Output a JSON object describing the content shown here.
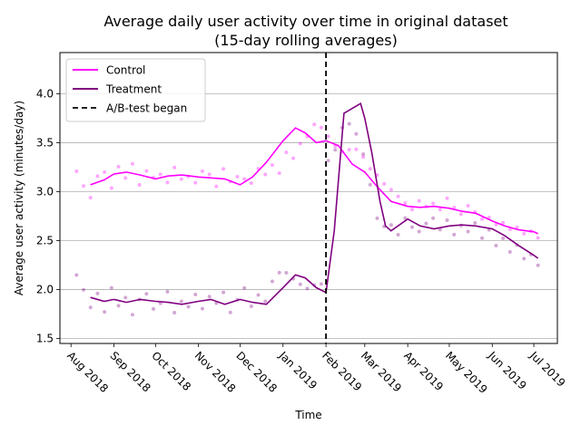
{
  "chart_data": {
    "type": "line",
    "title": "Average daily user activity over time in original dataset",
    "subtitle": "(15-day rolling averages)",
    "xlabel": "Time",
    "ylabel": "Average user activity (minutes/day)",
    "xlim": [
      "2018-07-24",
      "2019-07-18"
    ],
    "ylim": [
      1.45,
      4.42
    ],
    "yticks": [
      1.5,
      2.0,
      2.5,
      3.0,
      3.5,
      4.0
    ],
    "ytick_labels": [
      "1.5",
      "2.0",
      "2.5",
      "3.0",
      "3.5",
      "4.0"
    ],
    "xticks": [
      "2018-08-01",
      "2018-09-01",
      "2018-10-01",
      "2018-11-01",
      "2018-12-01",
      "2019-01-01",
      "2019-02-01",
      "2019-03-01",
      "2019-04-01",
      "2019-05-01",
      "2019-06-01",
      "2019-07-01"
    ],
    "xtick_labels": [
      "Aug 2018",
      "Sep 2018",
      "Oct 2018",
      "Nov 2018",
      "Dec 2018",
      "Jan 2019",
      "Feb 2019",
      "Mar 2019",
      "Apr 2019",
      "May 2019",
      "Jun 2019",
      "Jul 2019"
    ],
    "grid": "horizontal",
    "legend_position": "upper-left",
    "event": {
      "date": "2019-02-01",
      "label": "A/B-test began",
      "color": "#000000"
    },
    "series": [
      {
        "name": "Control",
        "color": "#ff00ff",
        "x": [
          "2018-08-15",
          "2018-08-25",
          "2018-09-01",
          "2018-09-10",
          "2018-09-20",
          "2018-10-01",
          "2018-10-10",
          "2018-10-20",
          "2018-11-01",
          "2018-11-10",
          "2018-11-20",
          "2018-12-01",
          "2018-12-10",
          "2018-12-20",
          "2019-01-01",
          "2019-01-10",
          "2019-01-17",
          "2019-01-25",
          "2019-02-01",
          "2019-02-10",
          "2019-02-20",
          "2019-03-01",
          "2019-03-10",
          "2019-03-20",
          "2019-04-01",
          "2019-04-10",
          "2019-04-20",
          "2019-05-01",
          "2019-05-10",
          "2019-05-20",
          "2019-06-01",
          "2019-06-10",
          "2019-06-20",
          "2019-07-01",
          "2019-07-04"
        ],
        "y": [
          3.07,
          3.12,
          3.18,
          3.2,
          3.17,
          3.13,
          3.16,
          3.17,
          3.15,
          3.14,
          3.13,
          3.07,
          3.15,
          3.3,
          3.52,
          3.65,
          3.6,
          3.5,
          3.52,
          3.47,
          3.28,
          3.2,
          3.05,
          2.9,
          2.85,
          2.84,
          2.85,
          2.83,
          2.8,
          2.78,
          2.7,
          2.65,
          2.61,
          2.59,
          2.57
        ],
        "points": [
          3.3,
          3.05,
          2.85,
          3.2,
          3.25,
          2.95,
          3.3,
          3.1,
          3.35,
          3.0,
          3.25,
          3.15,
          3.2,
          3.05,
          3.3,
          3.1,
          3.15,
          3.05,
          3.25,
          3.2,
          3.0,
          3.3,
          3.1,
          3.2,
          3.15,
          3.05,
          3.25,
          3.1,
          3.2,
          3.0,
          3.3,
          3.15,
          3.4,
          3.55,
          3.8,
          3.75,
          3.6,
          3.45,
          3.4,
          3.5,
          3.55,
          3.45,
          3.3,
          3.25,
          3.15,
          3.1,
          3.0,
          2.9,
          2.8,
          2.95,
          2.85,
          2.9,
          2.8,
          3.0,
          2.85,
          2.75,
          2.9,
          2.8,
          2.7,
          2.75,
          2.65,
          2.7,
          2.6,
          2.65,
          2.55,
          2.6,
          2.5
        ]
      },
      {
        "name": "Treatment",
        "color": "#800080",
        "x": [
          "2018-08-15",
          "2018-08-25",
          "2018-09-01",
          "2018-09-10",
          "2018-09-20",
          "2018-10-01",
          "2018-10-10",
          "2018-10-20",
          "2018-11-01",
          "2018-11-10",
          "2018-11-20",
          "2018-12-01",
          "2018-12-10",
          "2018-12-20",
          "2019-01-01",
          "2019-01-10",
          "2019-01-17",
          "2019-01-25",
          "2019-02-01",
          "2019-02-07",
          "2019-02-14",
          "2019-02-20",
          "2019-02-26",
          "2019-03-01",
          "2019-03-06",
          "2019-03-12",
          "2019-03-16",
          "2019-03-20",
          "2019-04-01",
          "2019-04-10",
          "2019-04-20",
          "2019-05-01",
          "2019-05-10",
          "2019-05-20",
          "2019-06-01",
          "2019-06-10",
          "2019-06-20",
          "2019-07-01",
          "2019-07-04"
        ],
        "y": [
          1.92,
          1.88,
          1.9,
          1.87,
          1.9,
          1.88,
          1.87,
          1.85,
          1.88,
          1.9,
          1.85,
          1.9,
          1.87,
          1.85,
          2.02,
          2.15,
          2.12,
          2.02,
          1.97,
          2.6,
          3.8,
          3.85,
          3.9,
          3.75,
          3.4,
          2.9,
          2.65,
          2.6,
          2.72,
          2.65,
          2.62,
          2.65,
          2.66,
          2.65,
          2.62,
          2.55,
          2.45,
          2.35,
          2.32
        ],
        "points": [
          2.3,
          2.05,
          1.75,
          2.0,
          1.7,
          2.1,
          1.8,
          1.95,
          1.65,
          1.9,
          2.0,
          1.75,
          1.85,
          2.05,
          1.7,
          1.9,
          1.8,
          2.0,
          1.75,
          1.95,
          1.85,
          2.05,
          1.7,
          1.9,
          2.1,
          1.8,
          2.0,
          1.9,
          2.2,
          2.3,
          2.25,
          2.1,
          2.0,
          1.95,
          2.05,
          2.1,
          4.1,
          3.9,
          3.7,
          3.6,
          3.4,
          3.1,
          2.8,
          2.5,
          2.6,
          2.7,
          2.5,
          2.75,
          2.6,
          2.55,
          2.7,
          2.8,
          2.6,
          2.75,
          2.5,
          2.65,
          2.55,
          2.7,
          2.45,
          2.6,
          2.35,
          2.5,
          2.3,
          2.45,
          2.25,
          2.35,
          2.2
        ]
      }
    ]
  }
}
